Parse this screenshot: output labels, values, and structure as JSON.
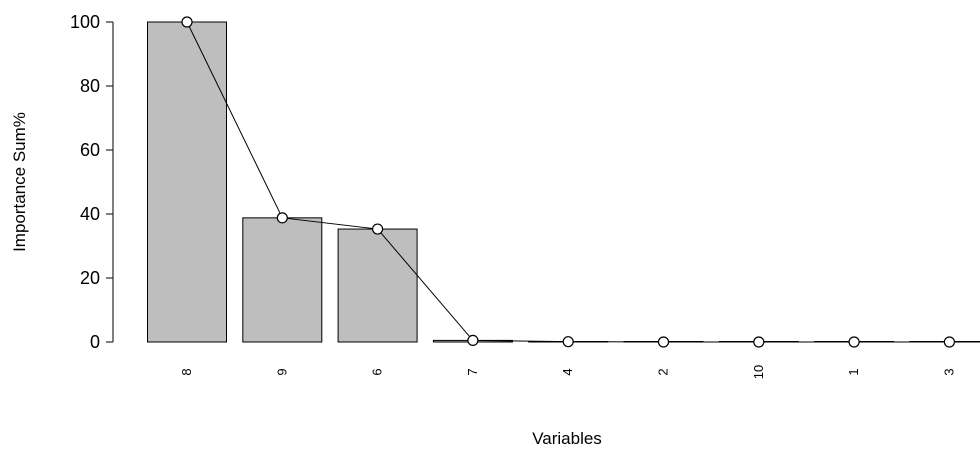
{
  "chart_data": {
    "type": "bar",
    "title": "",
    "xlabel": "Variables",
    "ylabel": "Importance Sum%",
    "categories": [
      "8",
      "9",
      "6",
      "7",
      "4",
      "2",
      "10",
      "1",
      "3"
    ],
    "values": [
      100,
      38.8,
      35.3,
      0.5,
      0.1,
      0.0,
      0.0,
      0.0,
      0.0
    ],
    "overlay_line": {
      "type": "line",
      "marker": "open-circle",
      "values": [
        100,
        38.8,
        35.3,
        0.5,
        0.1,
        0.0,
        0.0,
        0.0,
        0.0
      ]
    },
    "ylim": [
      0,
      100
    ],
    "yticks": [
      0,
      20,
      40,
      60,
      80,
      100
    ],
    "grid": false,
    "legend": "none",
    "colors": {
      "bar_fill": "#bebebe",
      "bar_stroke": "#000000",
      "line": "#000000"
    }
  }
}
